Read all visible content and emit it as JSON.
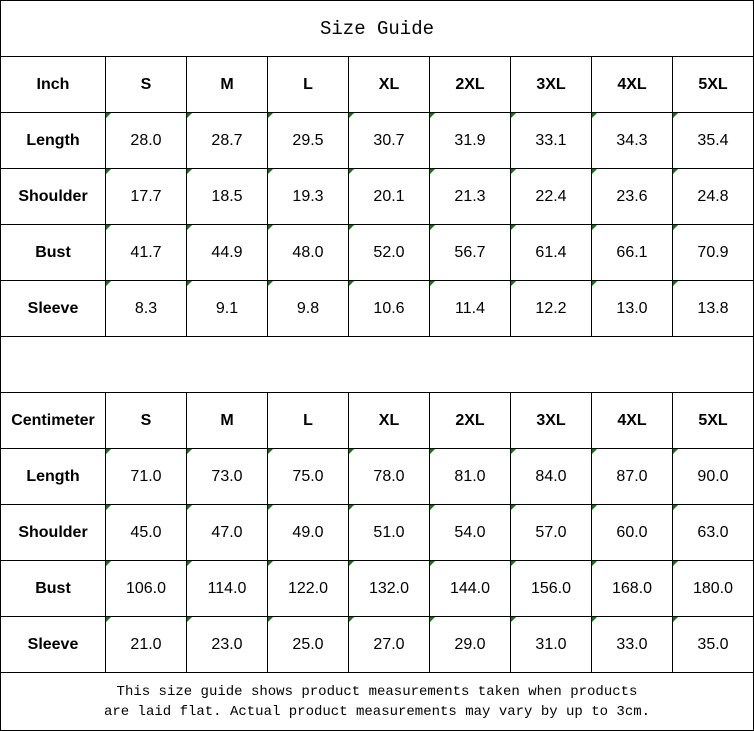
{
  "title": "Size Guide",
  "sizes": [
    "S",
    "M",
    "L",
    "XL",
    "2XL",
    "3XL",
    "4XL",
    "5XL"
  ],
  "inch": {
    "header": "Inch",
    "rows": [
      {
        "label": "Length",
        "values": [
          "28.0",
          "28.7",
          "29.5",
          "30.7",
          "31.9",
          "33.1",
          "34.3",
          "35.4"
        ]
      },
      {
        "label": "Shoulder",
        "values": [
          "17.7",
          "18.5",
          "19.3",
          "20.1",
          "21.3",
          "22.4",
          "23.6",
          "24.8"
        ]
      },
      {
        "label": "Bust",
        "values": [
          "41.7",
          "44.9",
          "48.0",
          "52.0",
          "56.7",
          "61.4",
          "66.1",
          "70.9"
        ]
      },
      {
        "label": "Sleeve",
        "values": [
          "8.3",
          "9.1",
          "9.8",
          "10.6",
          "11.4",
          "12.2",
          "13.0",
          "13.8"
        ]
      }
    ]
  },
  "centimeter": {
    "header": "Centimeter",
    "rows": [
      {
        "label": "Length",
        "values": [
          "71.0",
          "73.0",
          "75.0",
          "78.0",
          "81.0",
          "84.0",
          "87.0",
          "90.0"
        ]
      },
      {
        "label": "Shoulder",
        "values": [
          "45.0",
          "47.0",
          "49.0",
          "51.0",
          "54.0",
          "57.0",
          "60.0",
          "63.0"
        ]
      },
      {
        "label": "Bust",
        "values": [
          "106.0",
          "114.0",
          "122.0",
          "132.0",
          "144.0",
          "156.0",
          "168.0",
          "180.0"
        ]
      },
      {
        "label": "Sleeve",
        "values": [
          "21.0",
          "23.0",
          "25.0",
          "27.0",
          "29.0",
          "31.0",
          "33.0",
          "35.0"
        ]
      }
    ]
  },
  "note": {
    "line1": "This size guide shows product measurements taken when products",
    "line2": "are laid flat. Actual product measurements may vary by up to 3cm."
  },
  "colors": {
    "cell_marker": "#0a7a0a",
    "border": "#000000"
  }
}
